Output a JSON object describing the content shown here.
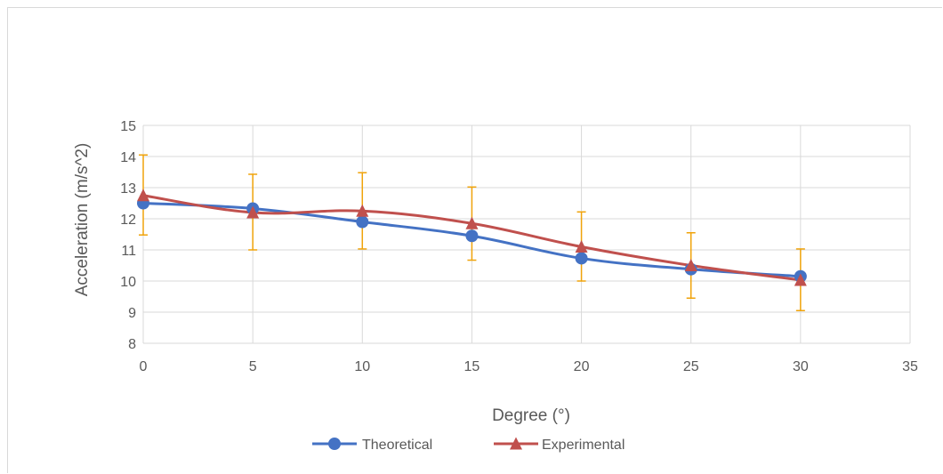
{
  "chart_data": {
    "type": "line",
    "title": "",
    "xlabel": "Degree (°)",
    "ylabel": "Acceleration (m/s^2)",
    "xlim": [
      0,
      35
    ],
    "ylim": [
      8,
      15
    ],
    "x_ticks": [
      0,
      5,
      10,
      15,
      20,
      25,
      30,
      35
    ],
    "y_ticks": [
      8,
      9,
      10,
      11,
      12,
      13,
      14,
      15
    ],
    "grid": true,
    "smooth": true,
    "legend": "bottom",
    "x": [
      0,
      5,
      10,
      15,
      20,
      25,
      30
    ],
    "series": [
      {
        "name": "Theoretical",
        "values": [
          12.5,
          12.33,
          11.9,
          11.45,
          10.73,
          10.38,
          10.15
        ],
        "color": "#4472c4",
        "marker": "circle"
      },
      {
        "name": "Experimental",
        "values": [
          12.75,
          12.2,
          12.25,
          11.85,
          11.1,
          10.5,
          10.03
        ],
        "color": "#c0504d",
        "marker": "triangle",
        "error_low": [
          11.48,
          11.0,
          11.03,
          10.67,
          10.0,
          9.45,
          9.05
        ],
        "error_high": [
          14.05,
          13.43,
          13.48,
          13.02,
          12.22,
          11.55,
          11.03
        ],
        "error_color": "#f0a30a"
      }
    ]
  }
}
